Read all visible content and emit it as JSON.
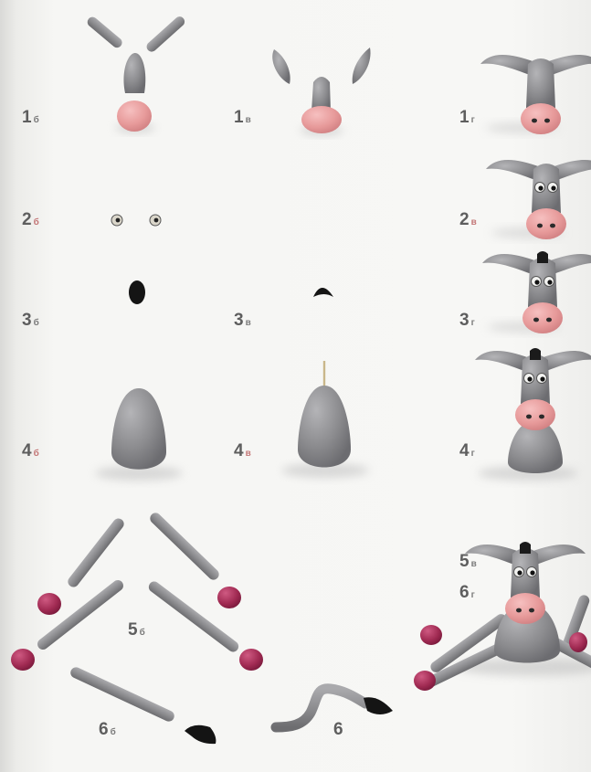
{
  "labels": {
    "s1b": {
      "num": "1",
      "sub": "б"
    },
    "s1v": {
      "num": "1",
      "sub": "в"
    },
    "s1g": {
      "num": "1",
      "sub": "г"
    },
    "s2b": {
      "num": "2",
      "sub": "б"
    },
    "s2v": {
      "num": "2",
      "sub": "в"
    },
    "s3b": {
      "num": "3",
      "sub": "б"
    },
    "s3v": {
      "num": "3",
      "sub": "в"
    },
    "s3g": {
      "num": "3",
      "sub": "г"
    },
    "s4b": {
      "num": "4",
      "sub": "б"
    },
    "s4v": {
      "num": "4",
      "sub": "в"
    },
    "s4g": {
      "num": "4",
      "sub": "г"
    },
    "s5v": {
      "num": "5",
      "sub": "в"
    },
    "s6g": {
      "num": "6",
      "sub": "г"
    },
    "s5b": {
      "num": "5",
      "sub": "б"
    },
    "s6b": {
      "num": "6",
      "sub": "б"
    },
    "s6": {
      "num": "6"
    }
  },
  "colors": {
    "clay_gray": "#8d8d90",
    "clay_pink": "#e79a9a",
    "clay_plum": "#a02a52",
    "clay_black": "#1b1b1b"
  }
}
